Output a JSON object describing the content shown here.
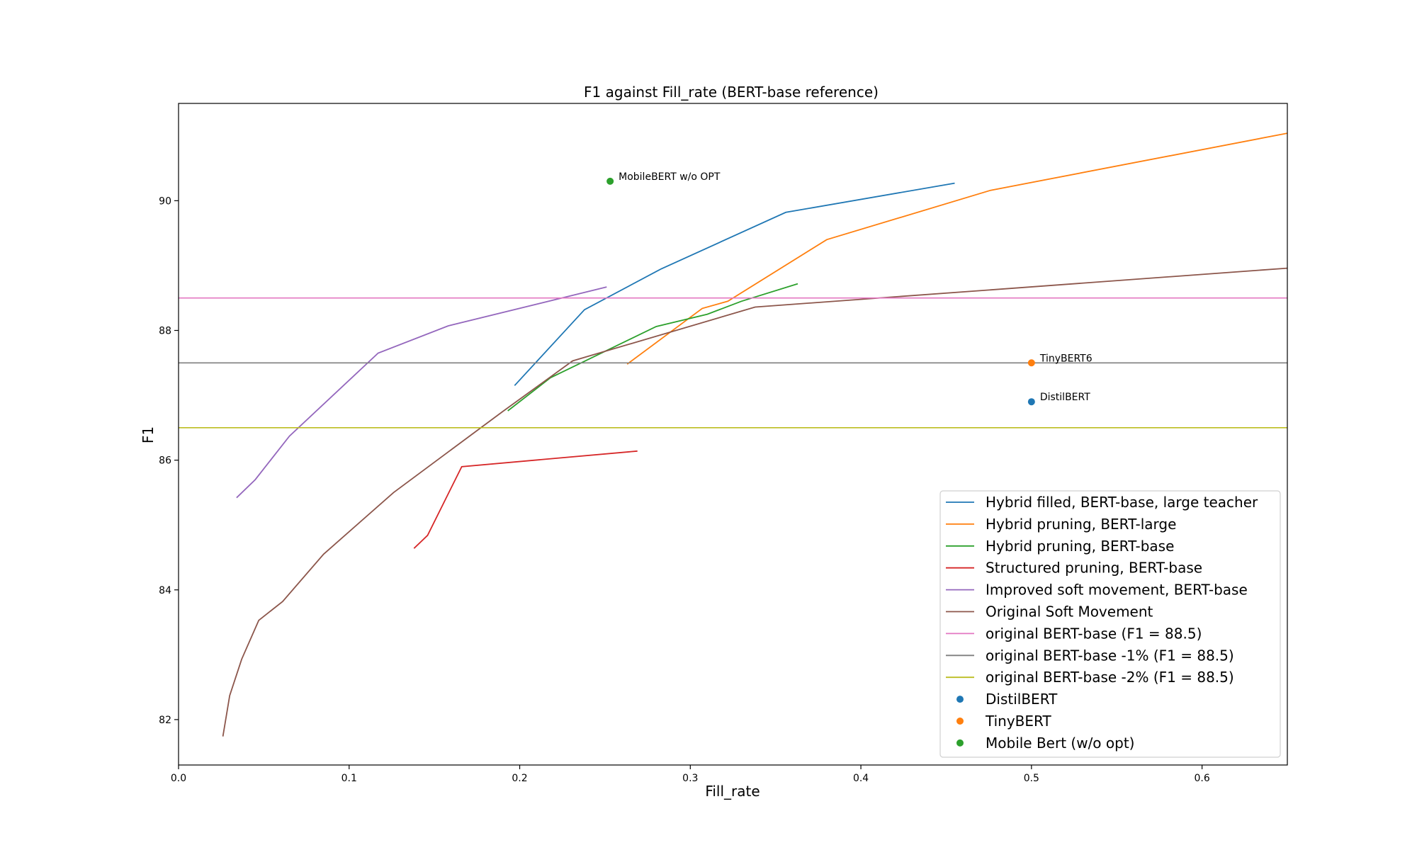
{
  "chart_data": {
    "type": "line",
    "title": "F1 against Fill_rate (BERT-base reference)",
    "xlabel": "Fill_rate",
    "ylabel": "F1",
    "xlim": [
      0.0,
      0.65
    ],
    "ylim": [
      81.3,
      91.5
    ],
    "xticks": [
      0.0,
      0.1,
      0.2,
      0.3,
      0.4,
      0.5,
      0.6
    ],
    "yticks": [
      82,
      84,
      86,
      88,
      90
    ],
    "xtick_labels": [
      "0.0",
      "0.1",
      "0.2",
      "0.3",
      "0.4",
      "0.5",
      "0.6"
    ],
    "ytick_labels": [
      "82",
      "84",
      "86",
      "88",
      "90"
    ],
    "grid": false,
    "legend_position": "bottom-right",
    "series": [
      {
        "name": "Hybrid filled, BERT-base, large teacher",
        "kind": "line",
        "color": "#1f77b4",
        "x": [
          0.197,
          0.238,
          0.283,
          0.356,
          0.455
        ],
        "y": [
          87.15,
          88.32,
          88.95,
          89.82,
          90.27
        ]
      },
      {
        "name": "Hybrid pruning, BERT-large",
        "kind": "line",
        "color": "#ff7f0e",
        "x": [
          0.263,
          0.307,
          0.322,
          0.38,
          0.476,
          0.65
        ],
        "y": [
          87.48,
          88.34,
          88.45,
          89.4,
          90.16,
          91.04
        ]
      },
      {
        "name": "Hybrid pruning, BERT-base",
        "kind": "line",
        "color": "#2ca02c",
        "x": [
          0.193,
          0.218,
          0.28,
          0.31,
          0.33,
          0.363
        ],
        "y": [
          86.76,
          87.27,
          88.06,
          88.25,
          88.45,
          88.72
        ]
      },
      {
        "name": "Structured pruning, BERT-base",
        "kind": "line",
        "color": "#d62728",
        "x": [
          0.138,
          0.146,
          0.166,
          0.269
        ],
        "y": [
          84.64,
          84.84,
          85.9,
          86.14
        ]
      },
      {
        "name": "Improved soft movement, BERT-base",
        "kind": "line",
        "color": "#9467bd",
        "x": [
          0.034,
          0.045,
          0.065,
          0.117,
          0.158,
          0.251
        ],
        "y": [
          85.42,
          85.7,
          86.37,
          87.65,
          88.07,
          88.67
        ]
      },
      {
        "name": "Original Soft Movement",
        "kind": "line",
        "color": "#8c564b",
        "x": [
          0.026,
          0.03,
          0.037,
          0.047,
          0.061,
          0.085,
          0.126,
          0.19,
          0.231,
          0.338,
          0.65
        ],
        "y": [
          81.74,
          82.37,
          82.93,
          83.53,
          83.82,
          84.55,
          85.5,
          86.75,
          87.53,
          88.36,
          88.96
        ]
      },
      {
        "name": "original BERT-base (F1 = 88.5)",
        "kind": "hline",
        "color": "#e377c2",
        "y": 88.5
      },
      {
        "name": "original BERT-base -1% (F1 = 88.5)",
        "kind": "hline",
        "color": "#7f7f7f",
        "y": 87.5
      },
      {
        "name": "original BERT-base -2% (F1 = 88.5)",
        "kind": "hline",
        "color": "#bcbd22",
        "y": 86.5
      },
      {
        "name": "DistilBERT",
        "kind": "point",
        "color": "#1f77b4",
        "x": 0.5,
        "y": 86.9,
        "annotation": "DistilBERT"
      },
      {
        "name": "TinyBERT",
        "kind": "point",
        "color": "#ff7f0e",
        "x": 0.5,
        "y": 87.5,
        "annotation": "TinyBERT6"
      },
      {
        "name": "Mobile Bert (w/o opt)",
        "kind": "point",
        "color": "#2ca02c",
        "x": 0.253,
        "y": 90.3,
        "annotation": "MobileBERT w/o OPT"
      }
    ]
  }
}
